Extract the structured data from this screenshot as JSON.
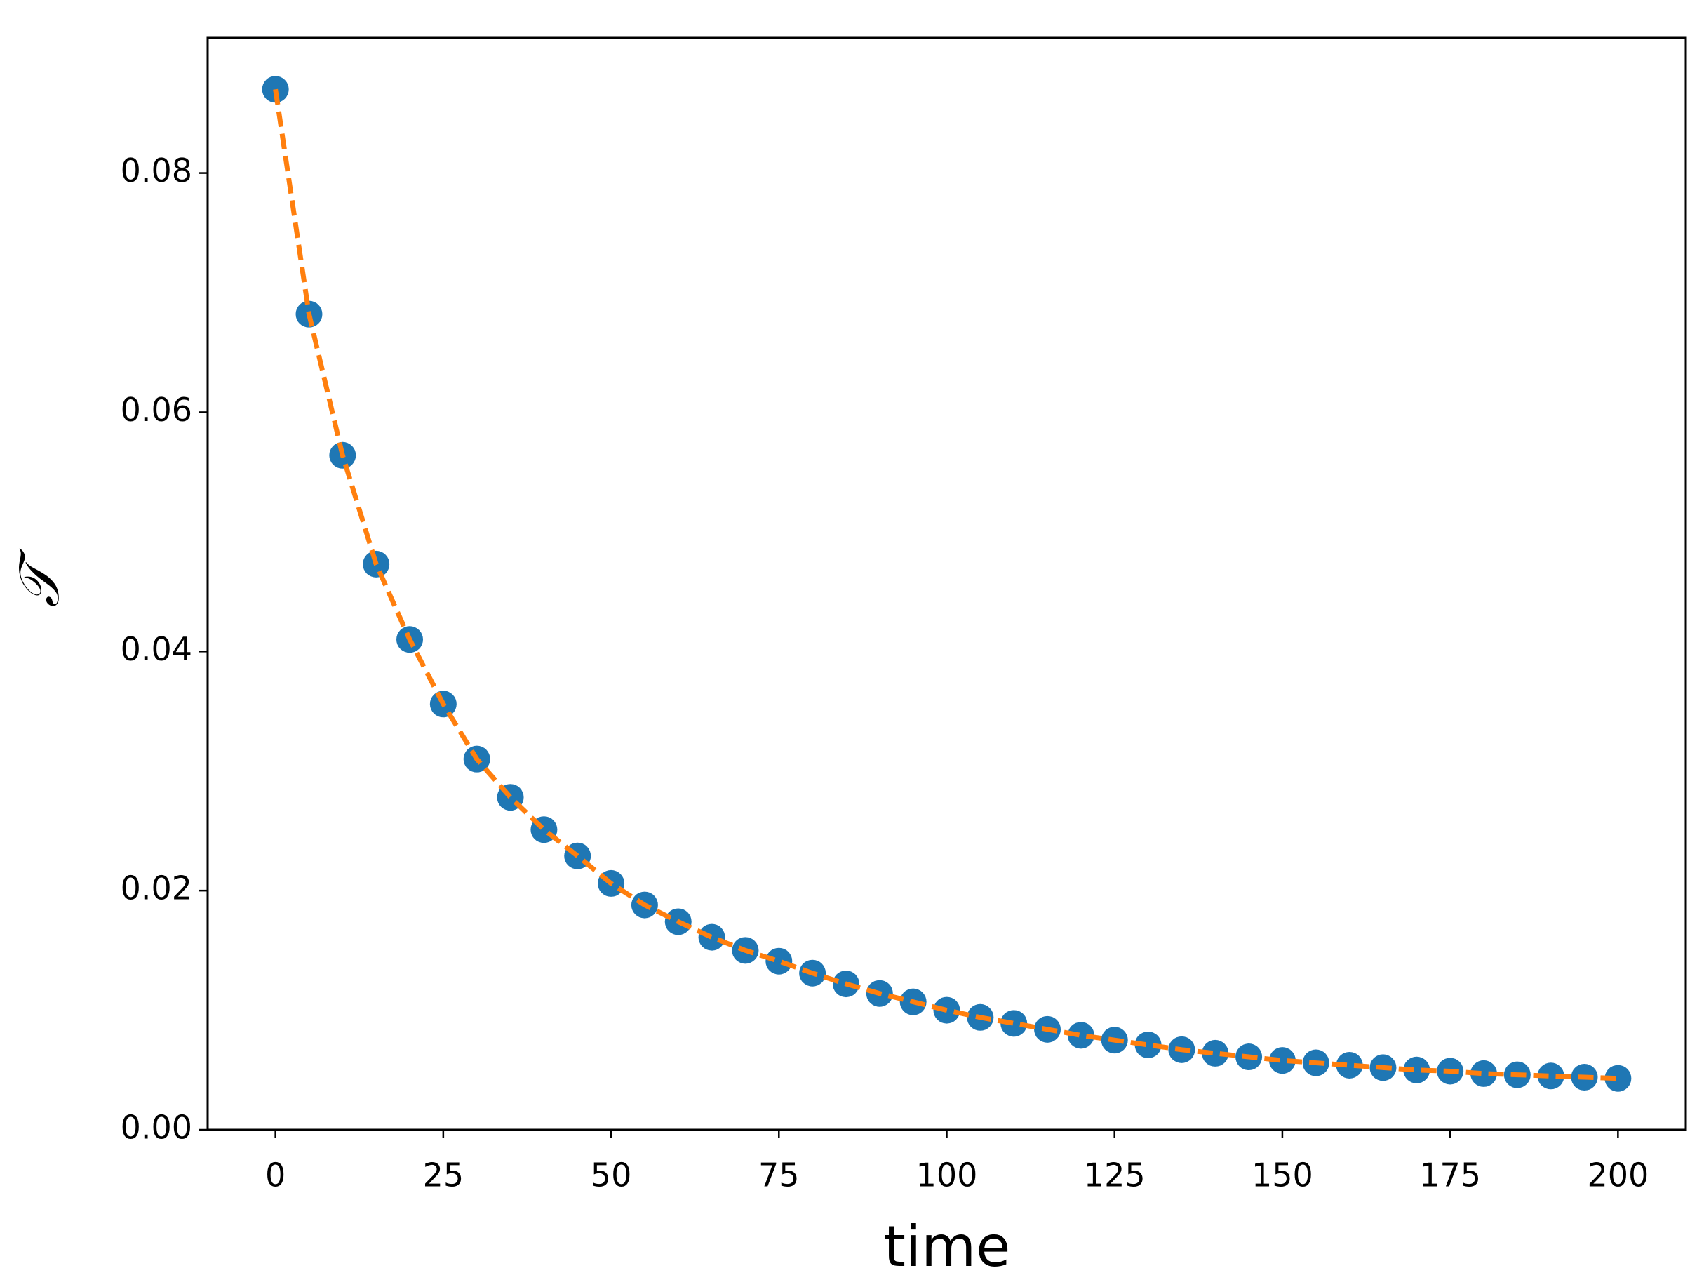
{
  "chart_data": {
    "type": "scatter",
    "x_label": "time",
    "y_label": "𝒯",
    "x": [
      0,
      5,
      10,
      15,
      20,
      25,
      30,
      35,
      40,
      45,
      50,
      55,
      60,
      65,
      70,
      75,
      80,
      85,
      90,
      95,
      100,
      105,
      110,
      115,
      120,
      125,
      130,
      135,
      140,
      145,
      150,
      155,
      160,
      165,
      170,
      175,
      180,
      185,
      190,
      195,
      200
    ],
    "series": [
      {
        "type": "scatter",
        "color": "#1f77b4",
        "values": [
          0.087,
          0.0682,
          0.0564,
          0.0473,
          0.041,
          0.0356,
          0.031,
          0.0278,
          0.0251,
          0.0229,
          0.0206,
          0.0188,
          0.0174,
          0.0161,
          0.015,
          0.0141,
          0.0131,
          0.0122,
          0.0114,
          0.0107,
          0.01,
          0.0094,
          0.0089,
          0.0084,
          0.0079,
          0.0075,
          0.0071,
          0.0067,
          0.0064,
          0.0061,
          0.0058,
          0.0056,
          0.0054,
          0.0052,
          0.005,
          0.0049,
          0.0047,
          0.0046,
          0.0045,
          0.0044,
          0.0043
        ]
      },
      {
        "type": "line",
        "color": "#ff7f0e",
        "dashed": true,
        "values": [
          0.087,
          0.0682,
          0.0564,
          0.0473,
          0.041,
          0.0356,
          0.031,
          0.0278,
          0.0251,
          0.0229,
          0.0206,
          0.0188,
          0.0174,
          0.0161,
          0.015,
          0.0141,
          0.0131,
          0.0122,
          0.0114,
          0.0107,
          0.01,
          0.0094,
          0.0089,
          0.0084,
          0.0079,
          0.0075,
          0.0071,
          0.0067,
          0.0064,
          0.0061,
          0.0058,
          0.0056,
          0.0054,
          0.0052,
          0.005,
          0.0049,
          0.0047,
          0.0046,
          0.0045,
          0.0044,
          0.0043
        ]
      }
    ],
    "xlim": [
      -10.1,
      210.1
    ],
    "xticks": [
      0,
      25,
      50,
      75,
      100,
      125,
      150,
      175,
      200
    ],
    "ylim": [
      0,
      0.0913
    ],
    "yticks": [
      {
        "value": 0,
        "label": "0.00"
      },
      {
        "value": 0.02,
        "label": "0.02"
      },
      {
        "value": 0.04,
        "label": "0.04"
      },
      {
        "value": 0.06,
        "label": "0.06"
      },
      {
        "value": 0.08,
        "label": "0.08"
      }
    ],
    "grid": false
  }
}
